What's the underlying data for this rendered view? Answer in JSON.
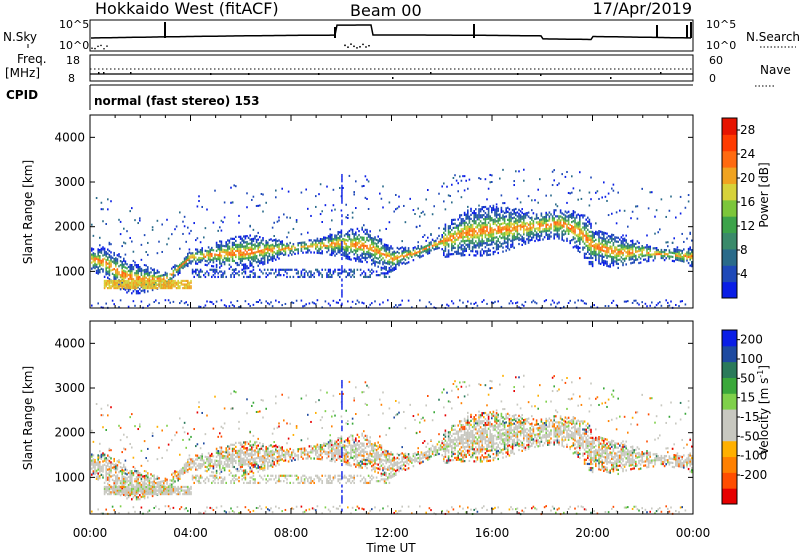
{
  "header": {
    "station": "Hokkaido West (fitACF)",
    "beam": "Beam 00",
    "date": "17/Apr/2019"
  },
  "noise_panel": {
    "left_label": "N.Sky",
    "right_label": "N.Search",
    "left_ticks": [
      "10^5",
      "10^0"
    ],
    "right_ticks": [
      "10^5",
      "10^0"
    ]
  },
  "freq_panel": {
    "left_label_line1": "Freq.",
    "left_label_line2": "[MHz]",
    "right_label": "Nave",
    "left_ticks": [
      "18",
      "8"
    ],
    "right_ticks": [
      "60",
      "0"
    ]
  },
  "cpid_panel": {
    "label": "CPID",
    "text": "normal (fast stereo) 153"
  },
  "colors": {
    "power_scale": [
      "#0a1ee6",
      "#1f49b8",
      "#2a6b8a",
      "#3a8a6a",
      "#3ca34a",
      "#7cc63a",
      "#d7d23a",
      "#f0a320",
      "#ff6a10",
      "#ff3b00",
      "#e61400"
    ],
    "velocity_scale": [
      "#e60000",
      "#ff4d00",
      "#ff8000",
      "#ffb000",
      "#c8c8c0",
      "#c8c8c0",
      "#7fd04a",
      "#3aa83a",
      "#2a7a5a",
      "#1e4aa0",
      "#0a1ee6"
    ]
  },
  "chart_data": [
    {
      "type": "heatmap",
      "name": "power",
      "ylabel": "Slant Range [km]",
      "ylim": [
        180,
        4500
      ],
      "yticks": [
        1000,
        2000,
        3000,
        4000
      ],
      "colorbar": {
        "label": "Power [dB]",
        "ticks": [
          "4",
          "8",
          "12",
          "16",
          "20",
          "24",
          "28"
        ],
        "range": [
          0,
          30
        ]
      },
      "echo_band": {
        "hours": [
          0,
          0.5,
          1,
          1.5,
          2,
          3,
          4,
          5,
          6,
          7,
          8,
          9,
          10,
          11,
          12,
          13,
          14,
          15,
          16,
          17,
          18,
          18.7,
          19.5,
          20,
          21,
          22,
          23,
          24
        ],
        "center_km": [
          1300,
          1250,
          1050,
          900,
          850,
          850,
          1350,
          1400,
          1450,
          1500,
          1550,
          1600,
          1650,
          1600,
          1300,
          1450,
          1700,
          1900,
          1950,
          2000,
          2050,
          2100,
          1900,
          1600,
          1450,
          1450,
          1400,
          1350
        ]
      }
    },
    {
      "type": "heatmap",
      "name": "velocity",
      "ylabel": "Slant Range [km]",
      "xlabel": "Time UT",
      "ylim": [
        180,
        4500
      ],
      "yticks": [
        1000,
        2000,
        3000,
        4000
      ],
      "xticks": [
        "00:00",
        "04:00",
        "08:00",
        "12:00",
        "16:00",
        "20:00",
        "00:00"
      ],
      "xlim_hours": [
        0,
        24
      ],
      "colorbar": {
        "label": "Velocity [m s^-1]",
        "label_main": "Velocity [m s",
        "label_sup": "-1",
        "label_end": "]",
        "ticks": [
          "-200",
          "-100",
          "-50",
          "-15",
          "15",
          "50",
          "100",
          "200"
        ]
      }
    }
  ]
}
